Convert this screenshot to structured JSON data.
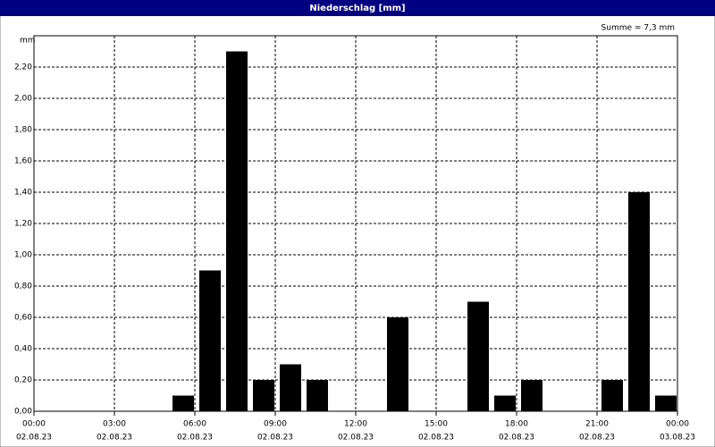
{
  "chart_data": {
    "type": "bar",
    "title": "Niederschlag [mm]",
    "y_label": "mm",
    "annotation": "Summe = 7,3 mm",
    "color": "#000000",
    "grid": true,
    "x": [
      5,
      6,
      7,
      8,
      9,
      10,
      13,
      16,
      17,
      18,
      21,
      22,
      23
    ],
    "values": [
      0.1,
      0.9,
      2.3,
      0.2,
      0.3,
      0.2,
      0.6,
      0.7,
      0.1,
      0.2,
      0.2,
      1.4,
      0.1
    ],
    "xlim": [
      0,
      24
    ],
    "xticks": [
      {
        "value": 0,
        "label": "00:00",
        "date": "02.08.23"
      },
      {
        "value": 3,
        "label": "03:00",
        "date": "02.08.23"
      },
      {
        "value": 6,
        "label": "06:00",
        "date": "02.08.23"
      },
      {
        "value": 9,
        "label": "09:00",
        "date": "02.08.23"
      },
      {
        "value": 12,
        "label": "12:00",
        "date": "02.08.23"
      },
      {
        "value": 15,
        "label": "15:00",
        "date": "02.08.23"
      },
      {
        "value": 18,
        "label": "18:00",
        "date": "02.08.23"
      },
      {
        "value": 21,
        "label": "21:00",
        "date": "02.08.23"
      },
      {
        "value": 24,
        "label": "00:00",
        "date": "03.08.23"
      }
    ],
    "ylim": [
      0,
      2.4
    ],
    "yticks": [
      {
        "value": 0,
        "label": "0,00"
      },
      {
        "value": 0.2,
        "label": "0,20"
      },
      {
        "value": 0.4,
        "label": "0,40"
      },
      {
        "value": 0.6,
        "label": "0,60"
      },
      {
        "value": 0.8,
        "label": "0,80"
      },
      {
        "value": 1.0,
        "label": "1,00"
      },
      {
        "value": 1.2,
        "label": "1,20"
      },
      {
        "value": 1.4,
        "label": "1,40"
      },
      {
        "value": 1.6,
        "label": "1,60"
      },
      {
        "value": 1.8,
        "label": "1,80"
      },
      {
        "value": 2.0,
        "label": "2,00"
      },
      {
        "value": 2.2,
        "label": "2,20"
      }
    ]
  }
}
